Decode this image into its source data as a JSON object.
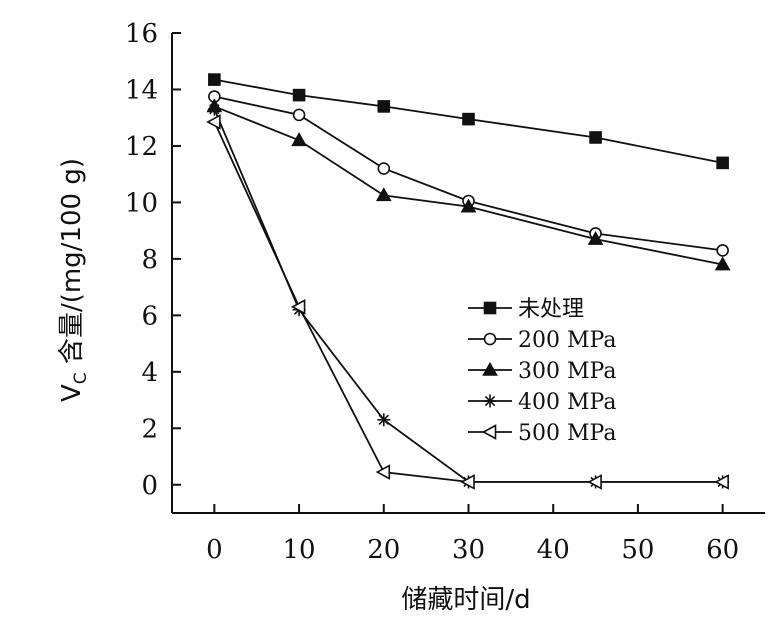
{
  "chart_data": {
    "type": "line",
    "xlabel": "储藏时间/d",
    "ylabel": "VC 含量/(mg/100 g)",
    "ylabel_parts": {
      "main": "V",
      "sub": "C",
      "rest": " 含量/(mg/100 g)"
    },
    "xlim": [
      -5,
      65
    ],
    "ylim": [
      -1,
      16
    ],
    "xticks": [
      0,
      10,
      20,
      30,
      40,
      50,
      60
    ],
    "yticks": [
      0,
      2,
      4,
      6,
      8,
      10,
      12,
      14,
      16
    ],
    "legend_position": "center-right",
    "grid": false,
    "series": [
      {
        "name": "未处理",
        "marker": "filled-square",
        "x": [
          0,
          10,
          20,
          30,
          45,
          60
        ],
        "values": [
          14.35,
          13.8,
          13.4,
          12.95,
          12.3,
          11.4
        ]
      },
      {
        "name": "200 MPa",
        "marker": "open-circle",
        "x": [
          0,
          10,
          20,
          30,
          45,
          60
        ],
        "values": [
          13.75,
          13.1,
          11.2,
          10.05,
          8.9,
          8.3
        ]
      },
      {
        "name": "300 MPa",
        "marker": "filled-triangle",
        "x": [
          0,
          10,
          20,
          30,
          45,
          60
        ],
        "values": [
          13.4,
          12.2,
          10.25,
          9.85,
          8.7,
          7.8
        ]
      },
      {
        "name": "400 MPa",
        "marker": "asterisk",
        "x": [
          0,
          10,
          20,
          30,
          45,
          60
        ],
        "values": [
          13.3,
          6.2,
          2.3,
          0.1,
          0.1,
          0.1
        ]
      },
      {
        "name": "500 MPa",
        "marker": "open-left-triangle",
        "x": [
          0,
          10,
          20,
          30,
          45,
          60
        ],
        "values": [
          12.85,
          6.3,
          0.45,
          0.1,
          0.1,
          0.1
        ]
      }
    ]
  }
}
